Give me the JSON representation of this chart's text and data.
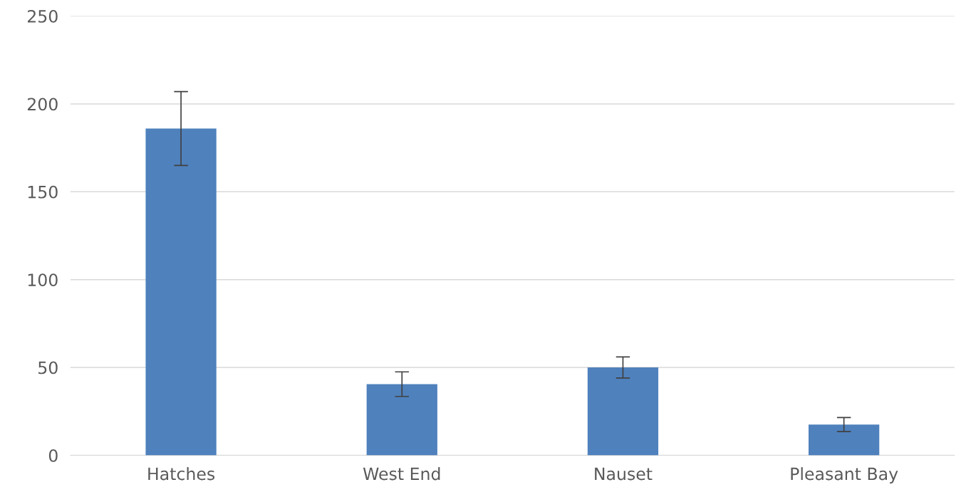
{
  "chart_data": {
    "type": "bar",
    "categories": [
      "Hatches",
      "West End",
      "Nauset",
      "Pleasant Bay"
    ],
    "values": [
      186,
      40.5,
      50,
      17.5
    ],
    "errors": [
      21,
      7,
      6,
      4
    ],
    "color": "#4f81bd",
    "ylim": [
      0,
      250
    ],
    "yticks": [
      0,
      50,
      100,
      150,
      200,
      250
    ],
    "grid": "y"
  }
}
